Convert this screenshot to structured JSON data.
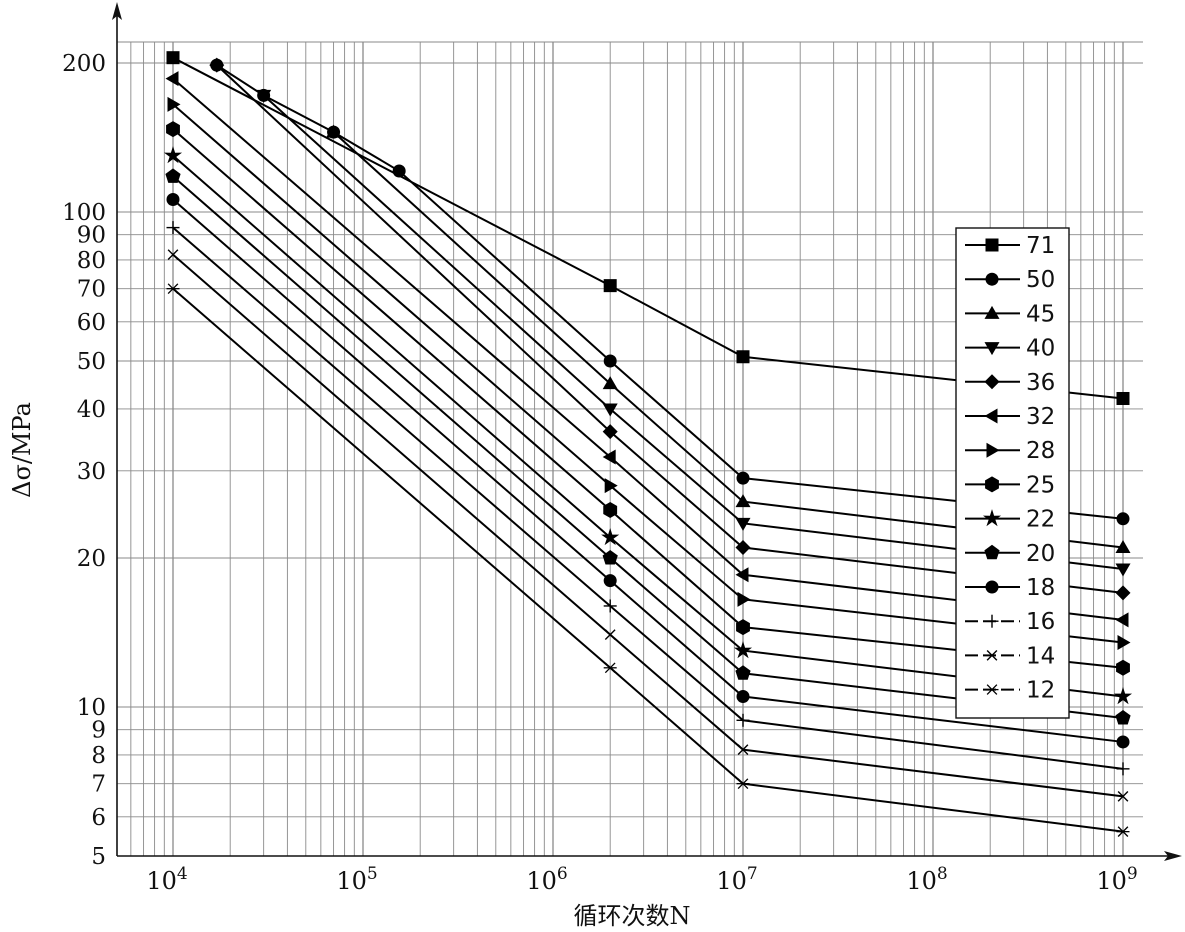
{
  "chart_data": {
    "type": "line",
    "title": "",
    "xlabel": "循环次数N",
    "ylabel": "Δσ/MPa",
    "x_scale": "log",
    "y_scale": "log",
    "xlim": [
      5000,
      1300000000
    ],
    "ylim": [
      5,
      230
    ],
    "grid": true,
    "legend_position": "right",
    "x_tick_labels": [
      {
        "value": 10000,
        "base": "10",
        "exp": "4"
      },
      {
        "value": 100000,
        "base": "10",
        "exp": "5"
      },
      {
        "value": 1000000,
        "base": "10",
        "exp": "6"
      },
      {
        "value": 10000000,
        "base": "10",
        "exp": "7"
      },
      {
        "value": 100000000,
        "base": "10",
        "exp": "8"
      },
      {
        "value": 1000000000,
        "base": "10",
        "exp": "9"
      }
    ],
    "y_tick_labels": [
      {
        "value": 5,
        "label": "5"
      },
      {
        "value": 6,
        "label": "6"
      },
      {
        "value": 7,
        "label": "7"
      },
      {
        "value": 8,
        "label": "8"
      },
      {
        "value": 9,
        "label": "9"
      },
      {
        "value": 10,
        "label": "10"
      },
      {
        "value": 20,
        "label": "20"
      },
      {
        "value": 30,
        "label": "30"
      },
      {
        "value": 40,
        "label": "40"
      },
      {
        "value": 50,
        "label": "50"
      },
      {
        "value": 60,
        "label": "60"
      },
      {
        "value": 70,
        "label": "70"
      },
      {
        "value": 80,
        "label": "80"
      },
      {
        "value": 90,
        "label": "90"
      },
      {
        "value": 100,
        "label": "100"
      },
      {
        "value": 200,
        "label": "200"
      }
    ],
    "series": [
      {
        "name": "71",
        "marker": "square",
        "x": [
          10000,
          2000000,
          10000000,
          1000000000
        ],
        "y": [
          205,
          71,
          51,
          42
        ]
      },
      {
        "name": "50",
        "marker": "circle",
        "x": [
          17000,
          30000,
          70000,
          155000,
          2000000,
          10000000,
          1000000000
        ],
        "y": [
          198,
          172,
          145,
          121,
          50,
          29,
          24
        ]
      },
      {
        "name": "45",
        "marker": "triangle-up",
        "x": [
          70000,
          2000000,
          10000000,
          1000000000
        ],
        "y": [
          145,
          45,
          26,
          21
        ]
      },
      {
        "name": "40",
        "marker": "triangle-down",
        "x": [
          30000,
          2000000,
          10000000,
          1000000000
        ],
        "y": [
          172,
          40,
          23.5,
          19
        ]
      },
      {
        "name": "36",
        "marker": "diamond",
        "x": [
          17000,
          2000000,
          10000000,
          1000000000
        ],
        "y": [
          198,
          36,
          21,
          17
        ]
      },
      {
        "name": "32",
        "marker": "triangle-left",
        "x": [
          10000,
          2000000,
          10000000,
          1000000000
        ],
        "y": [
          186,
          32,
          18.5,
          15
        ]
      },
      {
        "name": "28",
        "marker": "triangle-right",
        "x": [
          10000,
          2000000,
          10000000,
          1000000000
        ],
        "y": [
          165,
          28,
          16.5,
          13.5
        ]
      },
      {
        "name": "25",
        "marker": "hexagon",
        "x": [
          10000,
          2000000,
          10000000,
          1000000000
        ],
        "y": [
          147,
          25,
          14.5,
          12
        ]
      },
      {
        "name": "22",
        "marker": "star",
        "x": [
          10000,
          2000000,
          10000000,
          1000000000
        ],
        "y": [
          130,
          22,
          13,
          10.5
        ]
      },
      {
        "name": "20",
        "marker": "pentagon",
        "x": [
          10000,
          2000000,
          10000000,
          1000000000
        ],
        "y": [
          118,
          20,
          11.7,
          9.5
        ]
      },
      {
        "name": "18",
        "marker": "circle",
        "x": [
          10000,
          2000000,
          10000000,
          1000000000
        ],
        "y": [
          106,
          18,
          10.5,
          8.5
        ]
      },
      {
        "name": "16",
        "marker": "plus",
        "x": [
          10000,
          2000000,
          10000000,
          1000000000
        ],
        "y": [
          93,
          16,
          9.4,
          7.5
        ]
      },
      {
        "name": "14",
        "marker": "cross",
        "x": [
          10000,
          2000000,
          10000000,
          1000000000
        ],
        "y": [
          82,
          14,
          8.2,
          6.6
        ]
      },
      {
        "name": "12",
        "marker": "asterisk",
        "x": [
          10000,
          2000000,
          10000000,
          1000000000
        ],
        "y": [
          70,
          12,
          7,
          5.6
        ]
      }
    ]
  }
}
